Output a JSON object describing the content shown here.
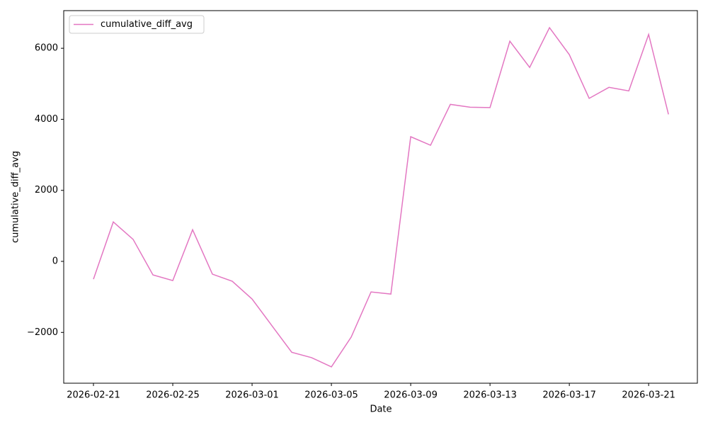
{
  "chart_data": {
    "type": "line",
    "x_label": "Date",
    "y_label": "cumulative_diff_avg",
    "x": [
      "2026-02-21",
      "2026-02-22",
      "2026-02-23",
      "2026-02-24",
      "2026-02-25",
      "2026-02-26",
      "2026-02-27",
      "2026-02-28",
      "2026-03-01",
      "2026-03-02",
      "2026-03-03",
      "2026-03-04",
      "2026-03-05",
      "2026-03-06",
      "2026-03-07",
      "2026-03-08",
      "2026-03-09",
      "2026-03-10",
      "2026-03-11",
      "2026-03-12",
      "2026-03-13",
      "2026-03-14",
      "2026-03-15",
      "2026-03-16",
      "2026-03-17",
      "2026-03-18",
      "2026-03-19",
      "2026-03-20",
      "2026-03-21",
      "2026-03-22"
    ],
    "series": [
      {
        "name": "cumulative_diff_avg",
        "color": "#e377c2",
        "values": [
          -500,
          1110,
          620,
          -380,
          -540,
          890,
          -360,
          -560,
          -1060,
          -1810,
          -2560,
          -2710,
          -2970,
          -2130,
          -860,
          -920,
          3510,
          3270,
          4420,
          4340,
          4330,
          6200,
          5460,
          6580,
          5820,
          4590,
          4900,
          4800,
          6390,
          4140
        ]
      }
    ],
    "xlim": [
      "2026-02-19T12:00",
      "2026-03-23T11:00"
    ],
    "xticks": [
      "2026-02-21",
      "2026-02-25",
      "2026-03-01",
      "2026-03-05",
      "2026-03-09",
      "2026-03-13",
      "2026-03-17",
      "2026-03-21"
    ],
    "ylim": [
      -3430,
      7060
    ],
    "yticks": [
      {
        "value": -2000,
        "label": "−2000"
      },
      0,
      2000,
      4000,
      6000
    ],
    "grid": false,
    "legend": "upper left"
  }
}
